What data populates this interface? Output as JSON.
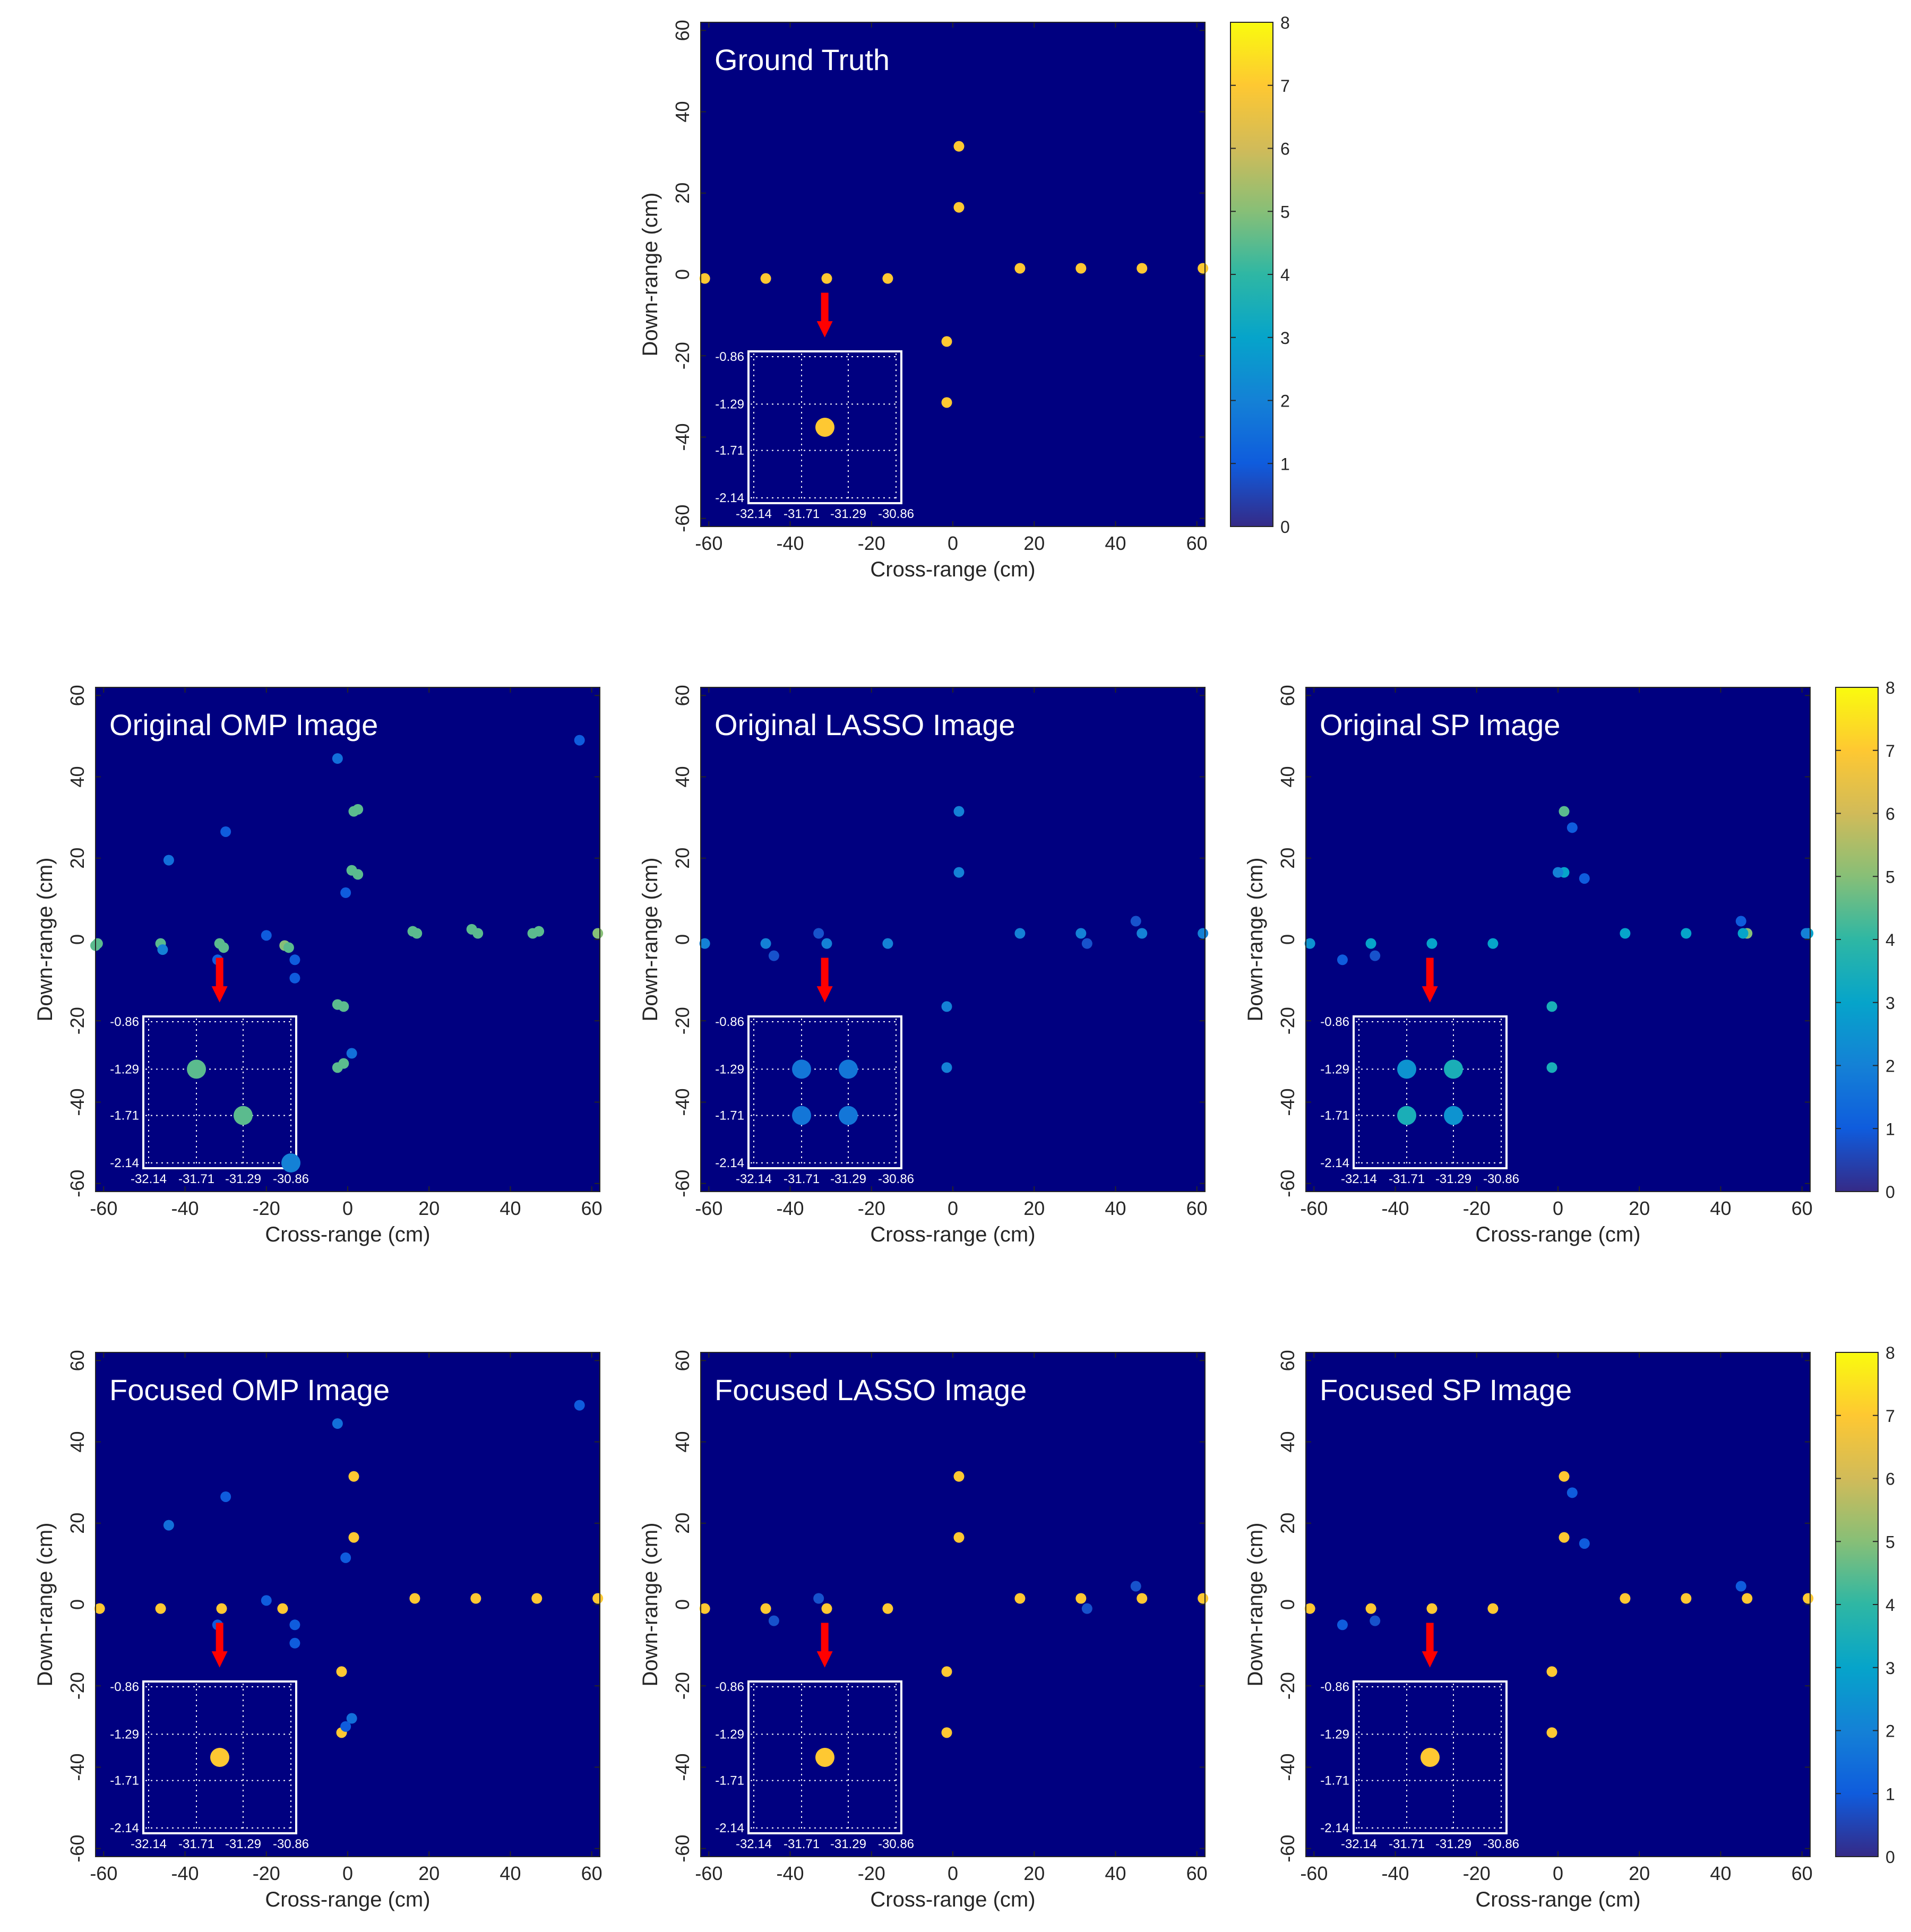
{
  "figure": {
    "xlabel": "Cross-range (cm)",
    "ylabel": "Down-range (cm)",
    "axis_ticks": [
      -60,
      -40,
      -20,
      0,
      20,
      40,
      60
    ],
    "axis_range": [
      -62,
      62
    ],
    "inset": {
      "x_ticks": [
        "-32.14",
        "-31.71",
        "-31.29",
        "-30.86"
      ],
      "y_ticks": [
        "-0.86",
        "-1.29",
        "-1.71",
        "-2.14"
      ],
      "x_range": [
        -32.14,
        -30.86
      ],
      "y_range": [
        -0.86,
        -2.14
      ]
    }
  },
  "colors": {
    "plot_background": "#000080",
    "arrow": "#ff0000",
    "inset_border": "#ffffff",
    "title_text": "#ffffff"
  },
  "colorbar": {
    "ticks": [
      "0",
      "1",
      "2",
      "3",
      "4",
      "5",
      "6",
      "7",
      "8"
    ],
    "range": [
      0,
      8
    ],
    "colormap": "parula",
    "stops": [
      "#352a87",
      "#0f5cdd",
      "#1481d6",
      "#06a4ca",
      "#2eb7a4",
      "#87bf77",
      "#d1bb59",
      "#fec832",
      "#f9fb0e"
    ]
  },
  "chart_data": [
    {
      "type": "scatter",
      "title": "Ground Truth",
      "xlabel": "Cross-range (cm)",
      "ylabel": "Down-range (cm)",
      "xlim": [
        -62,
        62
      ],
      "ylim": [
        -62,
        62
      ],
      "points": [
        {
          "x": -61,
          "y": -1,
          "v": 7
        },
        {
          "x": -46,
          "y": -1,
          "v": 7
        },
        {
          "x": -31,
          "y": -1,
          "v": 7
        },
        {
          "x": -16,
          "y": -1,
          "v": 7
        },
        {
          "x": 1.5,
          "y": 31.5,
          "v": 7
        },
        {
          "x": 1.5,
          "y": 16.5,
          "v": 7
        },
        {
          "x": 16.5,
          "y": 1.5,
          "v": 7
        },
        {
          "x": 31.5,
          "y": 1.5,
          "v": 7
        },
        {
          "x": 46.5,
          "y": 1.5,
          "v": 7
        },
        {
          "x": 61.5,
          "y": 1.5,
          "v": 7
        },
        {
          "x": -1.5,
          "y": -16.5,
          "v": 7
        },
        {
          "x": -1.5,
          "y": -31.5,
          "v": 7
        }
      ],
      "inset_points": [
        {
          "x": -31.5,
          "y": -1.5,
          "v": 7
        }
      ]
    },
    {
      "type": "scatter",
      "title": "Original OMP Image",
      "xlabel": "Cross-range (cm)",
      "ylabel": "Down-range (cm)",
      "xlim": [
        -62,
        62
      ],
      "ylim": [
        -62,
        62
      ],
      "points": [
        {
          "x": -61.5,
          "y": -1,
          "v": 4.5
        },
        {
          "x": -62,
          "y": -1.5,
          "v": 4.5
        },
        {
          "x": -46,
          "y": -1,
          "v": 4.5
        },
        {
          "x": -45.5,
          "y": -2.5,
          "v": 2
        },
        {
          "x": -31.5,
          "y": -1,
          "v": 4.5
        },
        {
          "x": -30.5,
          "y": -2,
          "v": 4.5
        },
        {
          "x": -15.5,
          "y": -1.5,
          "v": 5
        },
        {
          "x": -14.5,
          "y": -2,
          "v": 4.5
        },
        {
          "x": -44,
          "y": 19.5,
          "v": 1.5
        },
        {
          "x": -30,
          "y": 26.5,
          "v": 1
        },
        {
          "x": -2.5,
          "y": 44.5,
          "v": 1.5
        },
        {
          "x": 57,
          "y": 49,
          "v": 1
        },
        {
          "x": -20,
          "y": 1,
          "v": 1
        },
        {
          "x": -32,
          "y": -5,
          "v": 1
        },
        {
          "x": -13,
          "y": -5,
          "v": 1
        },
        {
          "x": -13,
          "y": -9.5,
          "v": 1
        },
        {
          "x": 1.5,
          "y": 31.5,
          "v": 4.5
        },
        {
          "x": 2.5,
          "y": 32,
          "v": 4.5
        },
        {
          "x": 1,
          "y": 17,
          "v": 4.5
        },
        {
          "x": 2.5,
          "y": 16,
          "v": 4.5
        },
        {
          "x": -0.5,
          "y": 11.5,
          "v": 1
        },
        {
          "x": 16,
          "y": 2,
          "v": 4.5
        },
        {
          "x": 17,
          "y": 1.5,
          "v": 4.5
        },
        {
          "x": 30.5,
          "y": 2.5,
          "v": 4.5
        },
        {
          "x": 32,
          "y": 1.5,
          "v": 4.5
        },
        {
          "x": 45.5,
          "y": 1.5,
          "v": 4.5
        },
        {
          "x": 47,
          "y": 2,
          "v": 4.5
        },
        {
          "x": 61.5,
          "y": 1.5,
          "v": 5
        },
        {
          "x": -2.5,
          "y": -16,
          "v": 4.5
        },
        {
          "x": -1,
          "y": -16.5,
          "v": 4.5
        },
        {
          "x": -2.5,
          "y": -31.5,
          "v": 4.5
        },
        {
          "x": -1,
          "y": -30.5,
          "v": 4.5
        },
        {
          "x": 1,
          "y": -28,
          "v": 1.5
        }
      ],
      "inset_points": [
        {
          "x": -31.71,
          "y": -1.29,
          "v": 4.5
        },
        {
          "x": -31.29,
          "y": -1.71,
          "v": 4.5
        },
        {
          "x": -30.86,
          "y": -2.14,
          "v": 2
        }
      ]
    },
    {
      "type": "scatter",
      "title": "Original LASSO Image",
      "xlabel": "Cross-range (cm)",
      "ylabel": "Down-range (cm)",
      "xlim": [
        -62,
        62
      ],
      "ylim": [
        -62,
        62
      ],
      "points": [
        {
          "x": -61,
          "y": -1,
          "v": 2
        },
        {
          "x": -46,
          "y": -1,
          "v": 2
        },
        {
          "x": -31,
          "y": -1,
          "v": 2
        },
        {
          "x": -16,
          "y": -1,
          "v": 2
        },
        {
          "x": -44,
          "y": -4,
          "v": 0.8
        },
        {
          "x": -33,
          "y": 1.5,
          "v": 0.8
        },
        {
          "x": 1.5,
          "y": 31.5,
          "v": 2
        },
        {
          "x": 1.5,
          "y": 16.5,
          "v": 2
        },
        {
          "x": 16.5,
          "y": 1.5,
          "v": 2
        },
        {
          "x": 31.5,
          "y": 1.5,
          "v": 2
        },
        {
          "x": 46.5,
          "y": 1.5,
          "v": 2
        },
        {
          "x": 61.5,
          "y": 1.5,
          "v": 2
        },
        {
          "x": 45,
          "y": 4.5,
          "v": 0.8
        },
        {
          "x": 33,
          "y": -1,
          "v": 0.8
        },
        {
          "x": -1.5,
          "y": -16.5,
          "v": 2
        },
        {
          "x": -1.5,
          "y": -31.5,
          "v": 2
        }
      ],
      "inset_points": [
        {
          "x": -31.71,
          "y": -1.29,
          "v": 1.7
        },
        {
          "x": -31.29,
          "y": -1.29,
          "v": 1.7
        },
        {
          "x": -31.71,
          "y": -1.71,
          "v": 1.7
        },
        {
          "x": -31.29,
          "y": -1.71,
          "v": 1.7
        }
      ]
    },
    {
      "type": "scatter",
      "title": "Original SP Image",
      "xlabel": "Cross-range (cm)",
      "ylabel": "Down-range (cm)",
      "xlim": [
        -62,
        62
      ],
      "ylim": [
        -62,
        62
      ],
      "points": [
        {
          "x": -61,
          "y": -1,
          "v": 2.5
        },
        {
          "x": -46,
          "y": -1,
          "v": 3
        },
        {
          "x": -31,
          "y": -1,
          "v": 3
        },
        {
          "x": -16,
          "y": -1,
          "v": 3
        },
        {
          "x": -53,
          "y": -5,
          "v": 1
        },
        {
          "x": -45,
          "y": -4,
          "v": 0.8
        },
        {
          "x": 1.5,
          "y": 31.5,
          "v": 4.5
        },
        {
          "x": 3.5,
          "y": 27.5,
          "v": 1
        },
        {
          "x": 1.5,
          "y": 16.5,
          "v": 3
        },
        {
          "x": 0,
          "y": 16.5,
          "v": 2
        },
        {
          "x": 6.5,
          "y": 15,
          "v": 1
        },
        {
          "x": 16.5,
          "y": 1.5,
          "v": 3
        },
        {
          "x": 31.5,
          "y": 1.5,
          "v": 3
        },
        {
          "x": 46.5,
          "y": 1.5,
          "v": 5
        },
        {
          "x": 45.5,
          "y": 1.5,
          "v": 3
        },
        {
          "x": 45,
          "y": 4.5,
          "v": 1
        },
        {
          "x": 61.5,
          "y": 1.5,
          "v": 3
        },
        {
          "x": 61,
          "y": 1.5,
          "v": 2
        },
        {
          "x": -1.5,
          "y": -16.5,
          "v": 3.5
        },
        {
          "x": -1.5,
          "y": -31.5,
          "v": 3.5
        }
      ],
      "inset_points": [
        {
          "x": -31.71,
          "y": -1.29,
          "v": 2.5
        },
        {
          "x": -31.29,
          "y": -1.29,
          "v": 3.5
        },
        {
          "x": -31.71,
          "y": -1.71,
          "v": 3.5
        },
        {
          "x": -31.29,
          "y": -1.71,
          "v": 2.5
        }
      ]
    },
    {
      "type": "scatter",
      "title": "Focused OMP Image",
      "xlabel": "Cross-range (cm)",
      "ylabel": "Down-range (cm)",
      "xlim": [
        -62,
        62
      ],
      "ylim": [
        -62,
        62
      ],
      "points": [
        {
          "x": -61,
          "y": -1,
          "v": 7
        },
        {
          "x": -46,
          "y": -1,
          "v": 7
        },
        {
          "x": -31,
          "y": -1,
          "v": 7
        },
        {
          "x": -16,
          "y": -1,
          "v": 7
        },
        {
          "x": -44,
          "y": 19.5,
          "v": 1.5
        },
        {
          "x": -30,
          "y": 26.5,
          "v": 1
        },
        {
          "x": -2.5,
          "y": 44.5,
          "v": 1.5
        },
        {
          "x": 57,
          "y": 49,
          "v": 1
        },
        {
          "x": -20,
          "y": 1,
          "v": 1
        },
        {
          "x": -32,
          "y": -5,
          "v": 1
        },
        {
          "x": -13,
          "y": -5,
          "v": 1
        },
        {
          "x": -13,
          "y": -9.5,
          "v": 1
        },
        {
          "x": -0.5,
          "y": 11.5,
          "v": 1
        },
        {
          "x": 1.5,
          "y": 31.5,
          "v": 7
        },
        {
          "x": 1.5,
          "y": 16.5,
          "v": 7
        },
        {
          "x": 16.5,
          "y": 1.5,
          "v": 7
        },
        {
          "x": 31.5,
          "y": 1.5,
          "v": 7
        },
        {
          "x": 46.5,
          "y": 1.5,
          "v": 7
        },
        {
          "x": 61.5,
          "y": 1.5,
          "v": 7
        },
        {
          "x": -1.5,
          "y": -16.5,
          "v": 7
        },
        {
          "x": -1.5,
          "y": -31.5,
          "v": 7
        },
        {
          "x": 1,
          "y": -28,
          "v": 1.5
        },
        {
          "x": -0.5,
          "y": -30,
          "v": 1
        }
      ],
      "inset_points": [
        {
          "x": -31.5,
          "y": -1.5,
          "v": 7
        }
      ]
    },
    {
      "type": "scatter",
      "title": "Focused LASSO Image",
      "xlabel": "Cross-range (cm)",
      "ylabel": "Down-range (cm)",
      "xlim": [
        -62,
        62
      ],
      "ylim": [
        -62,
        62
      ],
      "points": [
        {
          "x": -61,
          "y": -1,
          "v": 7
        },
        {
          "x": -46,
          "y": -1,
          "v": 7
        },
        {
          "x": -31,
          "y": -1,
          "v": 7
        },
        {
          "x": -16,
          "y": -1,
          "v": 7
        },
        {
          "x": -44,
          "y": -4,
          "v": 0.8
        },
        {
          "x": -33,
          "y": 1.5,
          "v": 0.8
        },
        {
          "x": 1.5,
          "y": 31.5,
          "v": 7
        },
        {
          "x": 1.5,
          "y": 16.5,
          "v": 7
        },
        {
          "x": 16.5,
          "y": 1.5,
          "v": 7
        },
        {
          "x": 31.5,
          "y": 1.5,
          "v": 7
        },
        {
          "x": 46.5,
          "y": 1.5,
          "v": 7
        },
        {
          "x": 61.5,
          "y": 1.5,
          "v": 7
        },
        {
          "x": 45,
          "y": 4.5,
          "v": 0.8
        },
        {
          "x": 33,
          "y": -1,
          "v": 0.8
        },
        {
          "x": -1.5,
          "y": -16.5,
          "v": 7
        },
        {
          "x": -1.5,
          "y": -31.5,
          "v": 7
        }
      ],
      "inset_points": [
        {
          "x": -31.5,
          "y": -1.5,
          "v": 7
        }
      ]
    },
    {
      "type": "scatter",
      "title": "Focused SP Image",
      "xlabel": "Cross-range (cm)",
      "ylabel": "Down-range (cm)",
      "xlim": [
        -62,
        62
      ],
      "ylim": [
        -62,
        62
      ],
      "points": [
        {
          "x": -61,
          "y": -1,
          "v": 7
        },
        {
          "x": -46,
          "y": -1,
          "v": 7
        },
        {
          "x": -31,
          "y": -1,
          "v": 7
        },
        {
          "x": -16,
          "y": -1,
          "v": 7
        },
        {
          "x": -53,
          "y": -5,
          "v": 1
        },
        {
          "x": -45,
          "y": -4,
          "v": 0.8
        },
        {
          "x": 1.5,
          "y": 31.5,
          "v": 7
        },
        {
          "x": 3.5,
          "y": 27.5,
          "v": 1
        },
        {
          "x": 1.5,
          "y": 16.5,
          "v": 7
        },
        {
          "x": 6.5,
          "y": 15,
          "v": 1
        },
        {
          "x": 16.5,
          "y": 1.5,
          "v": 7
        },
        {
          "x": 31.5,
          "y": 1.5,
          "v": 7
        },
        {
          "x": 46.5,
          "y": 1.5,
          "v": 7
        },
        {
          "x": 61.5,
          "y": 1.5,
          "v": 7
        },
        {
          "x": 45,
          "y": 4.5,
          "v": 1
        },
        {
          "x": -1.5,
          "y": -16.5,
          "v": 7
        },
        {
          "x": -1.5,
          "y": -31.5,
          "v": 7
        }
      ],
      "inset_points": [
        {
          "x": -31.5,
          "y": -1.5,
          "v": 7
        }
      ]
    }
  ]
}
